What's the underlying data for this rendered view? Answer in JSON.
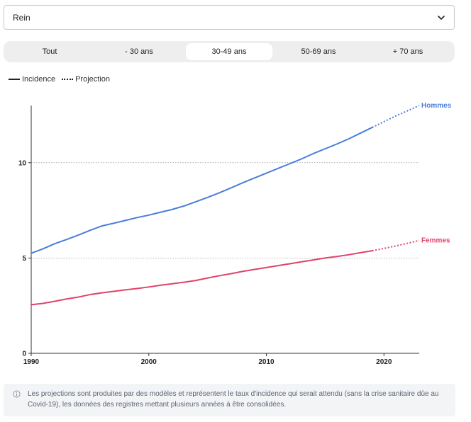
{
  "filter": {
    "selected": "Rein"
  },
  "tabs": [
    {
      "label": "Tout",
      "active": false
    },
    {
      "label": "- 30 ans",
      "active": false
    },
    {
      "label": "30-49 ans",
      "active": true
    },
    {
      "label": "50-69 ans",
      "active": false
    },
    {
      "label": "+ 70 ans",
      "active": false
    }
  ],
  "legend": {
    "solid_label": "Incidence",
    "dotted_label": "Projection"
  },
  "note": {
    "text": "Les projections sont produites par des modèles et représentent le taux d'incidence qui serait attendu (sans la crise sanitaire dûe au Covid-19), les données des registres mettant plusieurs années à être consolidées."
  },
  "chart_data": {
    "type": "line",
    "title": "",
    "xlabel": "",
    "ylabel": "",
    "xlim": [
      1990,
      2023
    ],
    "ylim": [
      0,
      13
    ],
    "x_ticks": [
      1990,
      2000,
      2010,
      2020
    ],
    "y_ticks": [
      0,
      5,
      10
    ],
    "grid": "horizontal-dotted",
    "series": [
      {
        "name": "Hommes",
        "color": "#4a7ddb",
        "incidence": {
          "x": [
            1990,
            1991,
            1992,
            1993,
            1994,
            1995,
            1996,
            1997,
            1998,
            1999,
            2000,
            2001,
            2002,
            2003,
            2004,
            2005,
            2006,
            2007,
            2008,
            2009,
            2010,
            2011,
            2012,
            2013,
            2014,
            2015,
            2016,
            2017,
            2018,
            2019
          ],
          "y": [
            5.25,
            5.48,
            5.75,
            5.97,
            6.2,
            6.45,
            6.68,
            6.82,
            6.97,
            7.12,
            7.25,
            7.4,
            7.55,
            7.73,
            7.95,
            8.18,
            8.42,
            8.68,
            8.95,
            9.2,
            9.45,
            9.7,
            9.95,
            10.2,
            10.48,
            10.73,
            10.98,
            11.25,
            11.55,
            11.85
          ]
        },
        "projection": {
          "x": [
            2019,
            2020,
            2021,
            2022,
            2023
          ],
          "y": [
            11.85,
            12.15,
            12.45,
            12.72,
            13.0
          ]
        }
      },
      {
        "name": "Femmes",
        "color": "#e0426b",
        "incidence": {
          "x": [
            1990,
            1991,
            1992,
            1993,
            1994,
            1995,
            1996,
            1997,
            1998,
            1999,
            2000,
            2001,
            2002,
            2003,
            2004,
            2005,
            2006,
            2007,
            2008,
            2009,
            2010,
            2011,
            2012,
            2013,
            2014,
            2015,
            2016,
            2017,
            2018,
            2019
          ],
          "y": [
            2.55,
            2.62,
            2.73,
            2.85,
            2.95,
            3.08,
            3.17,
            3.25,
            3.33,
            3.4,
            3.48,
            3.57,
            3.65,
            3.73,
            3.82,
            3.95,
            4.07,
            4.18,
            4.3,
            4.4,
            4.5,
            4.6,
            4.7,
            4.8,
            4.9,
            5.0,
            5.08,
            5.17,
            5.28,
            5.38
          ]
        },
        "projection": {
          "x": [
            2019,
            2020,
            2021,
            2022,
            2023
          ],
          "y": [
            5.38,
            5.5,
            5.63,
            5.77,
            5.92
          ]
        }
      }
    ]
  }
}
